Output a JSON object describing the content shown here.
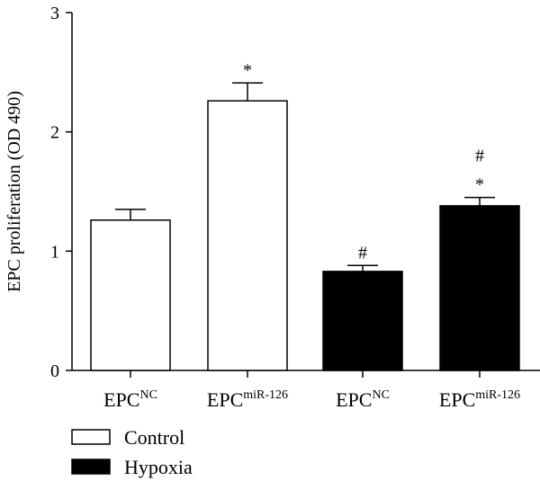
{
  "chart_data": {
    "type": "bar",
    "ylabel": "EPC proliferation (OD 490)",
    "ylim": [
      0,
      3
    ],
    "yticks": [
      "0",
      "1",
      "2",
      "3"
    ],
    "grid": false,
    "legend": {
      "placement": "bottom-left",
      "entries": [
        {
          "label": "Control",
          "fill": "#ffffff"
        },
        {
          "label": "Hypoxia",
          "fill": "#000000"
        }
      ]
    },
    "categories": [
      {
        "base": "EPC",
        "sup": "NC",
        "group": "Control"
      },
      {
        "base": "EPC",
        "sup": "miR-126",
        "group": "Control"
      },
      {
        "base": "EPC",
        "sup": "NC",
        "group": "Hypoxia"
      },
      {
        "base": "EPC",
        "sup": "miR-126",
        "group": "Hypoxia"
      }
    ],
    "values": [
      1.26,
      2.26,
      0.83,
      1.38
    ],
    "errors": [
      0.09,
      0.15,
      0.05,
      0.07
    ],
    "significance": [
      [],
      [
        "*"
      ],
      [
        "#"
      ],
      [
        "*",
        "#"
      ]
    ],
    "colors": {
      "control": "#ffffff",
      "hypoxia": "#000000",
      "stroke": "#000000"
    }
  }
}
